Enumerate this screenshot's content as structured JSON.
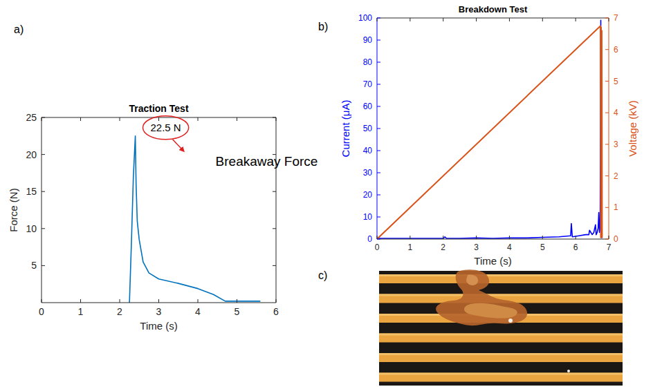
{
  "chart_data": [
    {
      "panel": "a)",
      "type": "line",
      "title": "Traction Test",
      "x_label": "Time (s)",
      "y_label": "Force (N)",
      "xlim": [
        0,
        6
      ],
      "xticks": [
        0,
        1,
        2,
        3,
        4,
        5,
        6
      ],
      "ylim": [
        0,
        25
      ],
      "yticks": [
        5,
        10,
        15,
        20,
        25
      ],
      "grid": false,
      "color": "#0072bd",
      "series": [
        {
          "x": [
            2.25,
            2.3,
            2.35,
            2.4,
            2.42,
            2.45,
            2.5,
            2.6,
            2.75,
            3.0,
            3.5,
            4.0,
            4.4,
            4.7,
            4.8,
            5.6
          ],
          "values": [
            0,
            8,
            17,
            22.5,
            16,
            11,
            8.5,
            5.5,
            4,
            3.2,
            2.6,
            1.9,
            1.1,
            0.2,
            0.2,
            0.2
          ]
        }
      ],
      "annotations": [
        {
          "text": "22.5 N",
          "x": 2.4,
          "y": 22.5
        },
        {
          "text": "Breakaway Force"
        }
      ]
    },
    {
      "panel": "b)",
      "type": "line",
      "title": "Breakdown Test",
      "x_label": "Time (s)",
      "y_label": "Current (μA)",
      "y2_label": "Voltage (kV)",
      "xlim": [
        0,
        7
      ],
      "xticks": [
        0,
        1,
        2,
        3,
        4,
        5,
        6,
        7
      ],
      "ylim": [
        0,
        100
      ],
      "yticks": [
        0,
        10,
        20,
        30,
        40,
        50,
        60,
        70,
        80,
        90,
        100
      ],
      "y2lim": [
        0,
        7
      ],
      "y2ticks": [
        0,
        1,
        2,
        3,
        4,
        5,
        6,
        7
      ],
      "grid": false,
      "series": [
        {
          "color": "#0000ff",
          "x": [
            0,
            0.5,
            1,
            1.5,
            2,
            2.05,
            2.1,
            2.5,
            3,
            3.5,
            4,
            4.5,
            5,
            5.5,
            5.85,
            5.87,
            5.9,
            6.1,
            6.3,
            6.4,
            6.42,
            6.5,
            6.55,
            6.6,
            6.62,
            6.65,
            6.68,
            6.7,
            6.72,
            6.74,
            6.76,
            6.77,
            6.8
          ],
          "values": [
            0.3,
            0.3,
            0.3,
            0.3,
            0.3,
            1,
            0.3,
            0.3,
            0.5,
            0.3,
            0.5,
            0.5,
            0.8,
            1,
            1.5,
            7,
            1,
            1.5,
            2,
            2,
            4,
            2,
            3,
            6.5,
            2,
            3,
            5,
            12,
            3,
            5,
            99,
            2,
            0.5
          ]
        },
        {
          "color": "#d95319",
          "axis": "y2",
          "x": [
            0,
            6.75,
            6.76,
            6.77,
            6.78,
            6.79,
            6.8
          ],
          "values": [
            0,
            6.75,
            0.05,
            6.7,
            0.05,
            6.6,
            0.05
          ]
        }
      ]
    }
  ],
  "image": {
    "panel": "c)"
  }
}
